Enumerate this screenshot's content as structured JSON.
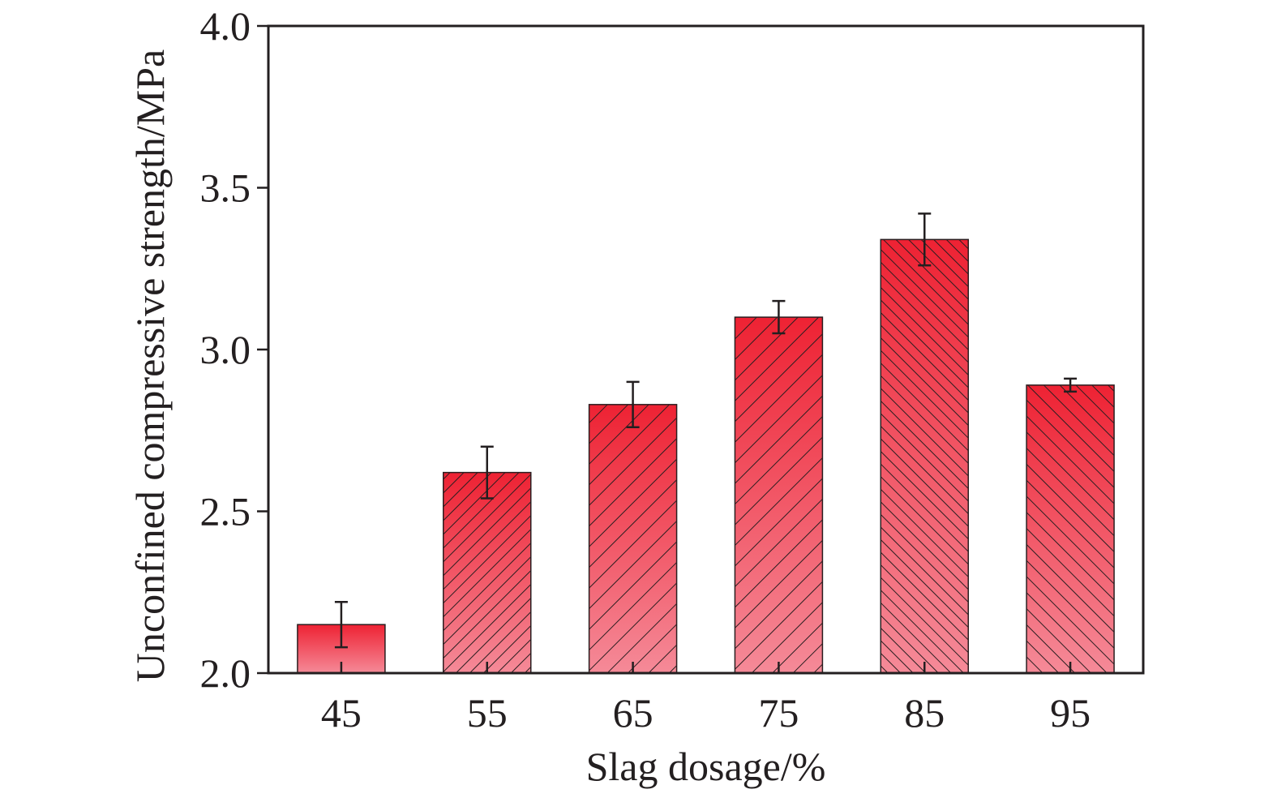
{
  "chart_data": {
    "type": "bar",
    "xlabel": "Slag dosage/%",
    "ylabel": "Unconfined compressive strength/MPa",
    "ylim": [
      2.0,
      4.0
    ],
    "yticks": [
      "2.0",
      "2.5",
      "3.0",
      "3.5",
      "4.0"
    ],
    "categories": [
      "45",
      "55",
      "65",
      "75",
      "85",
      "95"
    ],
    "values": [
      2.15,
      2.62,
      2.83,
      3.1,
      3.34,
      2.89
    ],
    "error_low": [
      2.08,
      2.54,
      2.76,
      3.05,
      3.26,
      2.87
    ],
    "error_high": [
      2.22,
      2.7,
      2.9,
      3.15,
      3.42,
      2.91
    ],
    "patterns": [
      "none",
      "hatch-fwd-dense",
      "hatch-fwd",
      "hatch-fwd",
      "hatch-back-dense",
      "hatch-back"
    ],
    "colors": {
      "bar_top": "#ee2233",
      "bar_bottom": "#f58a98",
      "hatch": "#2a1e20",
      "axis": "#231f20"
    },
    "grid": false,
    "legend": "none"
  }
}
